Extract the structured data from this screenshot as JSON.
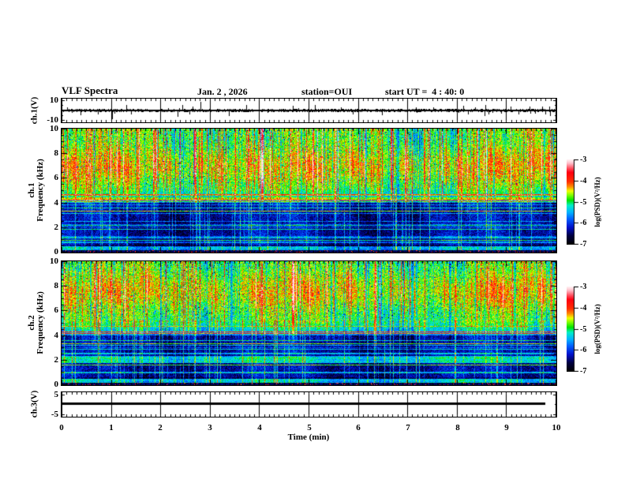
{
  "header": {
    "title": "VLF Spectra",
    "date": "Jan. 2 , 2026",
    "station": "station=OUI",
    "start_ut": "start UT =  4 : 40: 0"
  },
  "x_axis": {
    "label": "Time (min)",
    "tick_labels": [
      "0",
      "1",
      "2",
      "3",
      "4",
      "5",
      "6",
      "7",
      "8",
      "9",
      "10"
    ],
    "range": [
      0,
      10
    ],
    "minor_per_division": 10
  },
  "colormap": {
    "stops": [
      [
        0.0,
        0,
        0,
        0
      ],
      [
        0.1,
        0,
        0,
        64
      ],
      [
        0.2,
        0,
        16,
        204
      ],
      [
        0.3,
        0,
        96,
        255
      ],
      [
        0.38,
        0,
        180,
        255
      ],
      [
        0.46,
        0,
        240,
        200
      ],
      [
        0.52,
        0,
        228,
        0
      ],
      [
        0.58,
        125,
        255,
        0
      ],
      [
        0.63,
        240,
        255,
        0
      ],
      [
        0.68,
        255,
        144,
        0
      ],
      [
        0.74,
        255,
        48,
        0
      ],
      [
        0.85,
        255,
        0,
        16
      ],
      [
        0.9,
        255,
        80,
        96
      ],
      [
        0.96,
        255,
        192,
        204
      ],
      [
        1.0,
        255,
        240,
        242
      ]
    ]
  },
  "chart_data": [
    {
      "type": "line",
      "name": "ch1_waveform",
      "ylabel": "ch.1(V)",
      "ylim": [
        -11.5,
        11.5
      ],
      "yticks": [
        {
          "v": 10,
          "label": "10"
        },
        {
          "v": -10,
          "label": "-10"
        }
      ],
      "minor_yticks": [
        5,
        0,
        -5
      ],
      "xlim": [
        0,
        10
      ],
      "signal": "broadband noise band ~±1 V centered on 0 V with impulsive spikes reaching ±9 V",
      "seed": 7
    },
    {
      "type": "heatmap",
      "name": "ch1_spectrogram",
      "ylabel_line1": "ch.1",
      "ylabel_line2": "Frequency (kHz)",
      "ylim": [
        0,
        10
      ],
      "yticks": [
        {
          "v": 0,
          "label": "0"
        },
        {
          "v": 2,
          "label": "2"
        },
        {
          "v": 4,
          "label": "4"
        },
        {
          "v": 6,
          "label": "6"
        },
        {
          "v": 8,
          "label": "8"
        },
        {
          "v": 10,
          "label": "10"
        }
      ],
      "xlim": [
        0,
        10
      ],
      "value_range": [
        -7,
        -3
      ],
      "colorbar": {
        "label": "log(PSD)(V²/Hz)",
        "tick_labels": [
          "-3",
          "-4",
          "-5",
          "-6",
          "-7"
        ]
      },
      "texture": {
        "seed": 11,
        "bands": [
          {
            "f": 0.25,
            "halfwidth": 0.18,
            "boost": 1.35
          },
          {
            "f": 4.35,
            "halfwidth": 0.12,
            "boost": 0.85
          }
        ]
      },
      "description": "strong broadband emission 5-10 kHz (green/yellow with red vertical bursts); weak dark-blue background below 4 kHz crossed by persistent horizontal interference lines and vertical impulsive streaks"
    },
    {
      "type": "heatmap",
      "name": "ch2_spectrogram",
      "ylabel_line1": "ch.2",
      "ylabel_line2": "Frequency (kHz)",
      "ylim": [
        0,
        10
      ],
      "yticks": [
        {
          "v": 0,
          "label": "0"
        },
        {
          "v": 2,
          "label": "2"
        },
        {
          "v": 4,
          "label": "4"
        },
        {
          "v": 6,
          "label": "6"
        },
        {
          "v": 8,
          "label": "8"
        },
        {
          "v": 10,
          "label": "10"
        }
      ],
      "xlim": [
        0,
        10
      ],
      "value_range": [
        -7,
        -3
      ],
      "colorbar": {
        "label": "log(PSD)(V²/Hz)",
        "tick_labels": [
          "-3",
          "-4",
          "-5",
          "-6",
          "-7"
        ]
      },
      "texture": {
        "seed": 29,
        "bands": [
          {
            "f": 2.0,
            "halfwidth": 0.25,
            "boost": 1.15
          },
          {
            "f": 0.3,
            "halfwidth": 0.2,
            "boost": 1.35
          }
        ]
      },
      "description": "same structure as ch.1 with slightly more cyan mid-band and a bright band near 2 kHz"
    },
    {
      "type": "line",
      "name": "ch3_flatline",
      "ylabel": "ch.3(V)",
      "ylim": [
        -6,
        6
      ],
      "yticks": [
        {
          "v": 5,
          "label": "5"
        },
        {
          "v": -5,
          "label": "-5"
        }
      ],
      "minor_yticks": [
        0
      ],
      "xlim": [
        0,
        10
      ],
      "value": 0.5,
      "x_start": 0,
      "x_end": 9.8,
      "signal": "constant ~0.5 V line from 0 to 9.8 min"
    }
  ]
}
